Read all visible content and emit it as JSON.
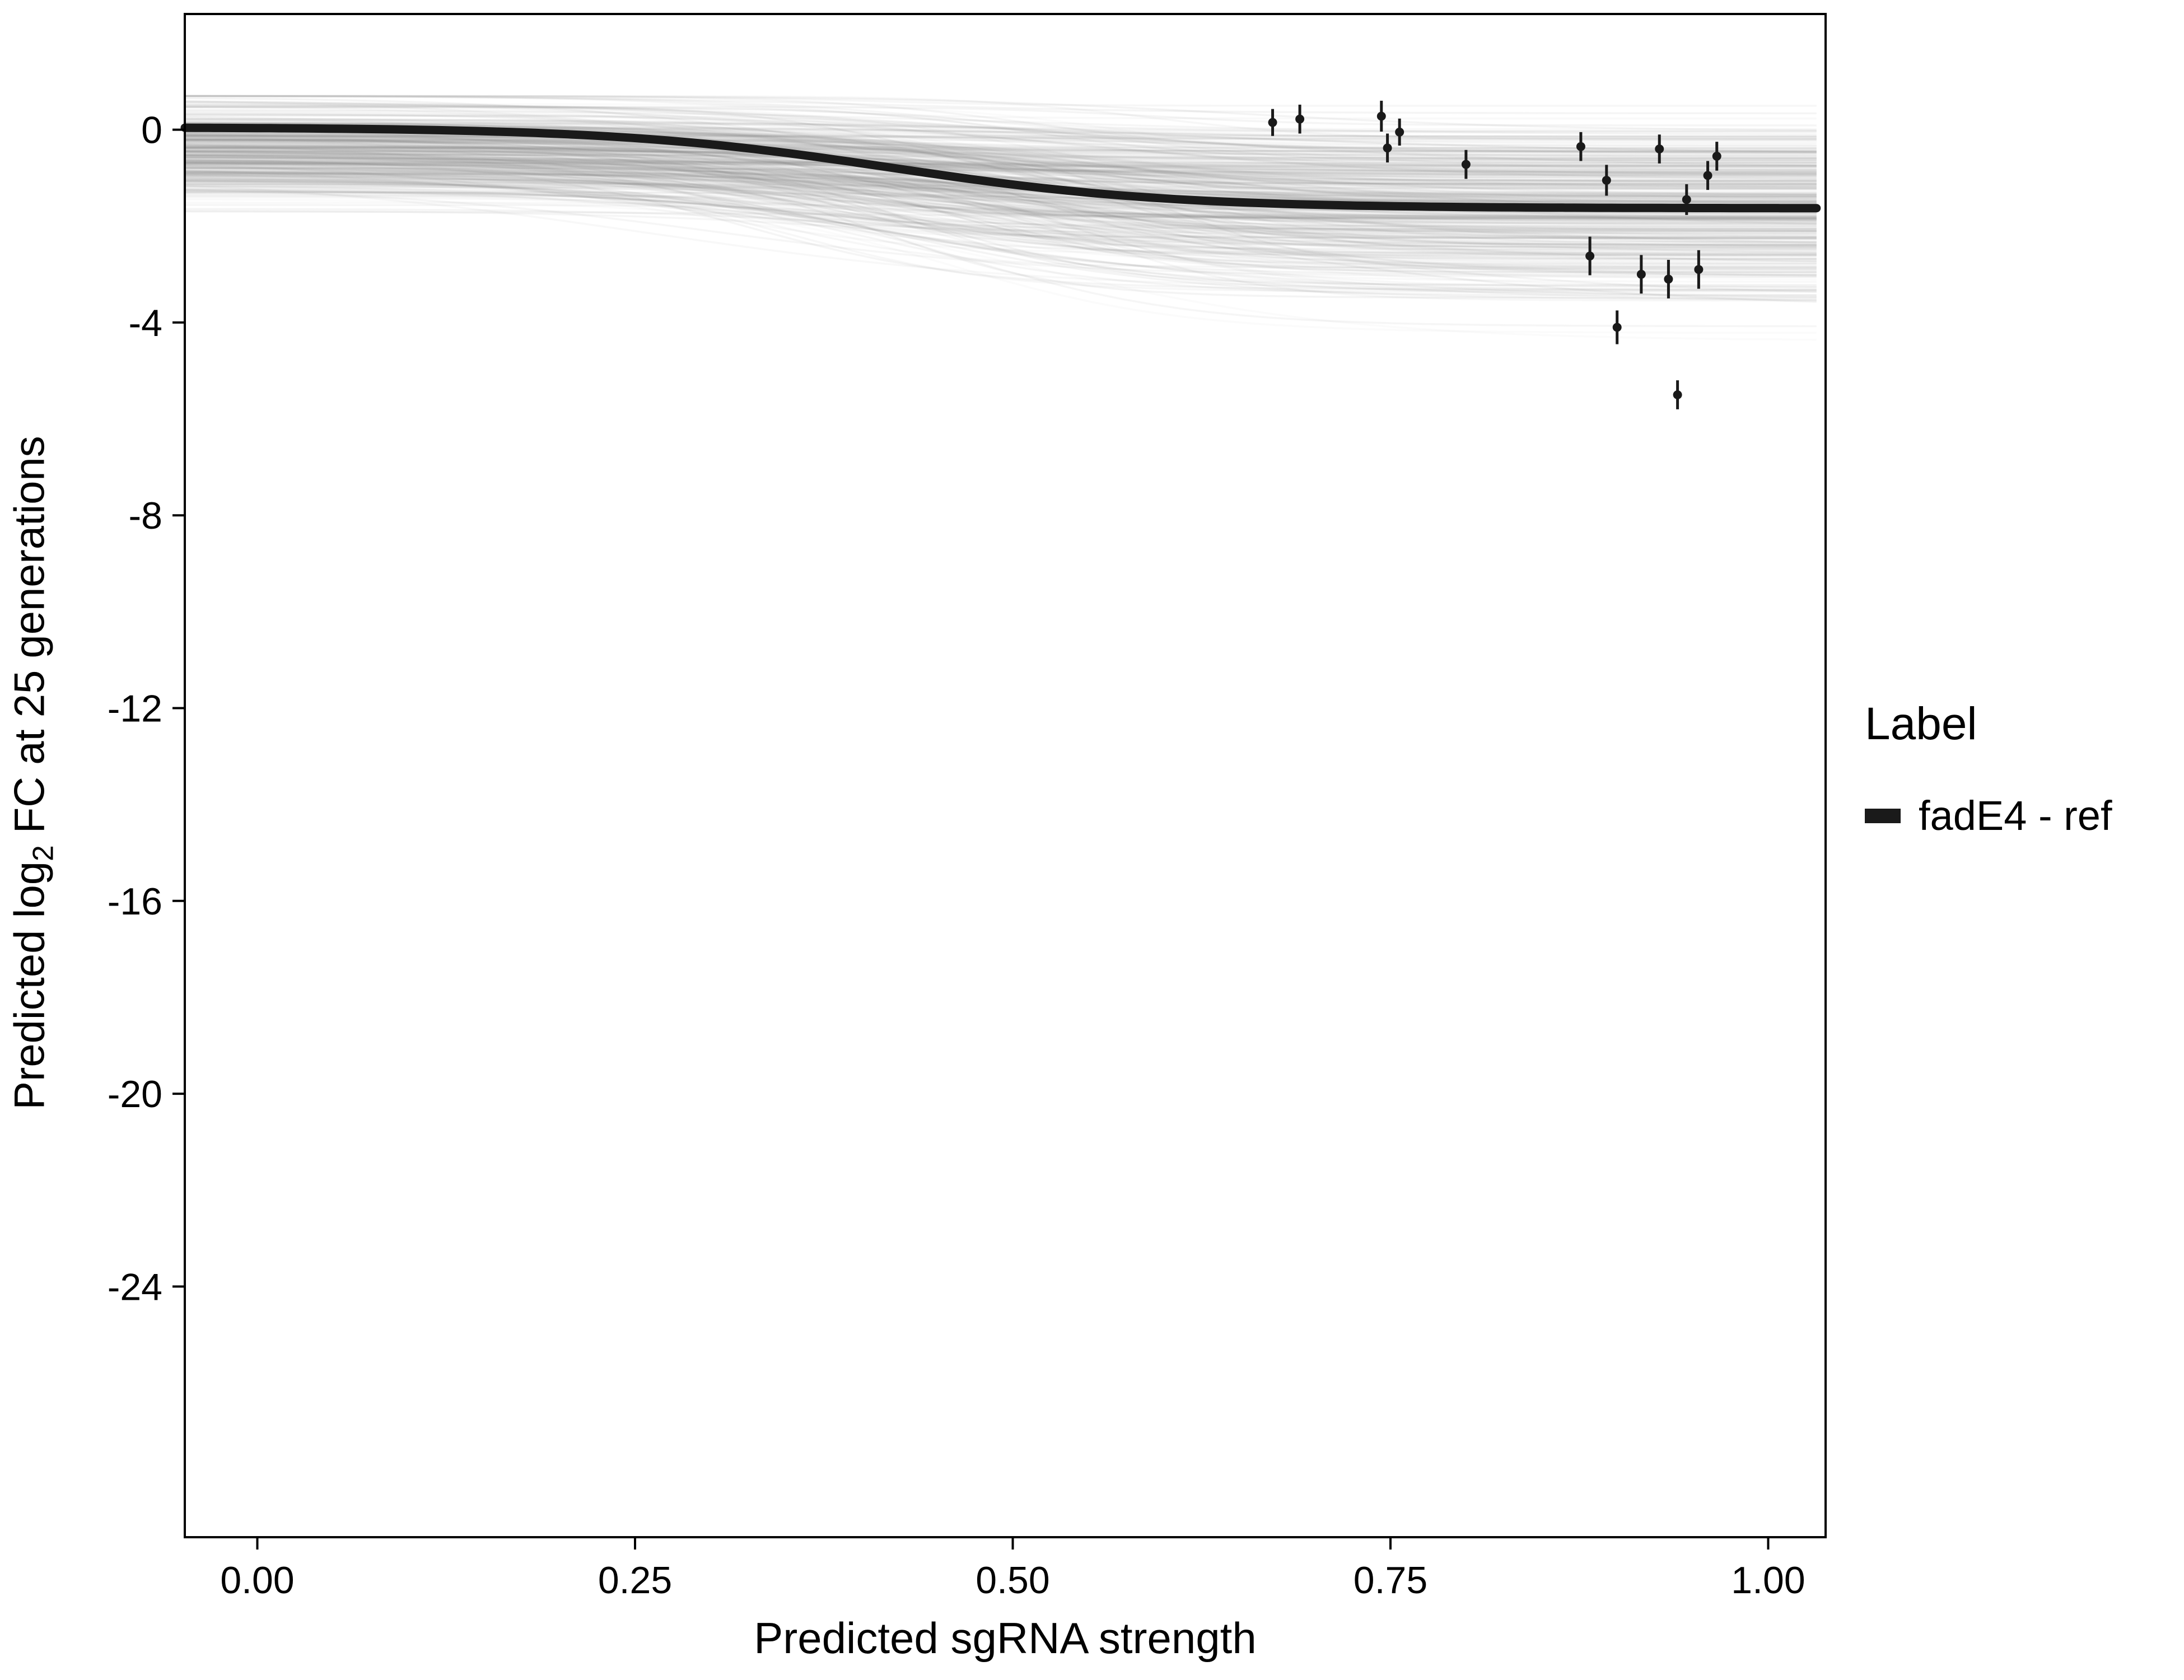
{
  "chart_data": {
    "type": "line",
    "title": "",
    "xlabel": "Predicted sgRNA strength",
    "ylabel": {
      "pre": "Predicted log",
      "sub": "2",
      "post": " FC at 25 generations"
    },
    "xlim": [
      -0.048,
      1.038
    ],
    "ylim": [
      -29.2,
      2.4
    ],
    "grid": false,
    "x_ticks": [
      {
        "v": 0.0,
        "label": "0.00"
      },
      {
        "v": 0.25,
        "label": "0.25"
      },
      {
        "v": 0.5,
        "label": "0.50"
      },
      {
        "v": 0.75,
        "label": "0.75"
      },
      {
        "v": 1.0,
        "label": "1.00"
      }
    ],
    "y_ticks": [
      {
        "v": 0,
        "label": "0"
      },
      {
        "v": -4,
        "label": "-4"
      },
      {
        "v": -8,
        "label": "-8"
      },
      {
        "v": -12,
        "label": "-12"
      },
      {
        "v": -16,
        "label": "-16"
      },
      {
        "v": -20,
        "label": "-20"
      },
      {
        "v": -24,
        "label": "-24"
      }
    ],
    "legend": {
      "title": "Label",
      "position": "right",
      "items": [
        {
          "label": "fadE4 - ref",
          "color": "#1a1a1a"
        }
      ]
    },
    "main_curve": {
      "name": "fadE4 - ref",
      "color": "#1a1a1a",
      "width": 15,
      "sigmoid": {
        "b": 0.05,
        "L": 1.68,
        "x0": 0.42,
        "k": 11
      },
      "x": [
        0.0,
        0.05,
        0.1,
        0.15,
        0.2,
        0.25,
        0.3,
        0.35,
        0.4,
        0.45,
        0.5,
        0.55,
        0.6,
        0.65,
        0.7,
        0.75,
        0.8,
        0.85,
        0.9,
        0.95,
        1.0
      ],
      "y": [
        0.03,
        0.02,
        0.0,
        -0.03,
        -0.09,
        -0.17,
        -0.3,
        -0.48,
        -0.7,
        -0.93,
        -1.14,
        -1.31,
        -1.43,
        -1.51,
        -1.56,
        -1.59,
        -1.6,
        -1.61,
        -1.62,
        -1.62,
        -1.62
      ]
    },
    "ensemble": {
      "description": "posterior draw curves (translucent gray band around fit)",
      "count": 380,
      "color": "#7a7a7a",
      "width": 3.5,
      "opacity_min": 0.03,
      "opacity_max": 0.09,
      "seed": 42,
      "b_mean": -0.45,
      "b_sd": 0.55,
      "L_mean": 1.1,
      "L_sd": 0.85,
      "x0_mean": 0.45,
      "x0_sd": 0.09,
      "k_min": 6,
      "k_max": 18
    },
    "points": {
      "color": "#1a1a1a",
      "radius": 8,
      "err_width": 5,
      "data": [
        {
          "x": 0.672,
          "y": 0.15,
          "e": 0.28
        },
        {
          "x": 0.69,
          "y": 0.22,
          "e": 0.3
        },
        {
          "x": 0.744,
          "y": 0.28,
          "e": 0.32
        },
        {
          "x": 0.748,
          "y": -0.38,
          "e": 0.3
        },
        {
          "x": 0.756,
          "y": -0.05,
          "e": 0.28
        },
        {
          "x": 0.8,
          "y": -0.72,
          "e": 0.3
        },
        {
          "x": 0.876,
          "y": -0.35,
          "e": 0.3
        },
        {
          "x": 0.882,
          "y": -2.62,
          "e": 0.4
        },
        {
          "x": 0.893,
          "y": -1.05,
          "e": 0.32
        },
        {
          "x": 0.9,
          "y": -4.1,
          "e": 0.35
        },
        {
          "x": 0.916,
          "y": -3.0,
          "e": 0.4
        },
        {
          "x": 0.928,
          "y": -0.4,
          "e": 0.3
        },
        {
          "x": 0.934,
          "y": -3.1,
          "e": 0.4
        },
        {
          "x": 0.94,
          "y": -5.5,
          "e": 0.3
        },
        {
          "x": 0.946,
          "y": -1.45,
          "e": 0.32
        },
        {
          "x": 0.954,
          "y": -2.9,
          "e": 0.4
        },
        {
          "x": 0.96,
          "y": -0.95,
          "e": 0.3
        },
        {
          "x": 0.966,
          "y": -0.55,
          "e": 0.3
        }
      ]
    }
  }
}
